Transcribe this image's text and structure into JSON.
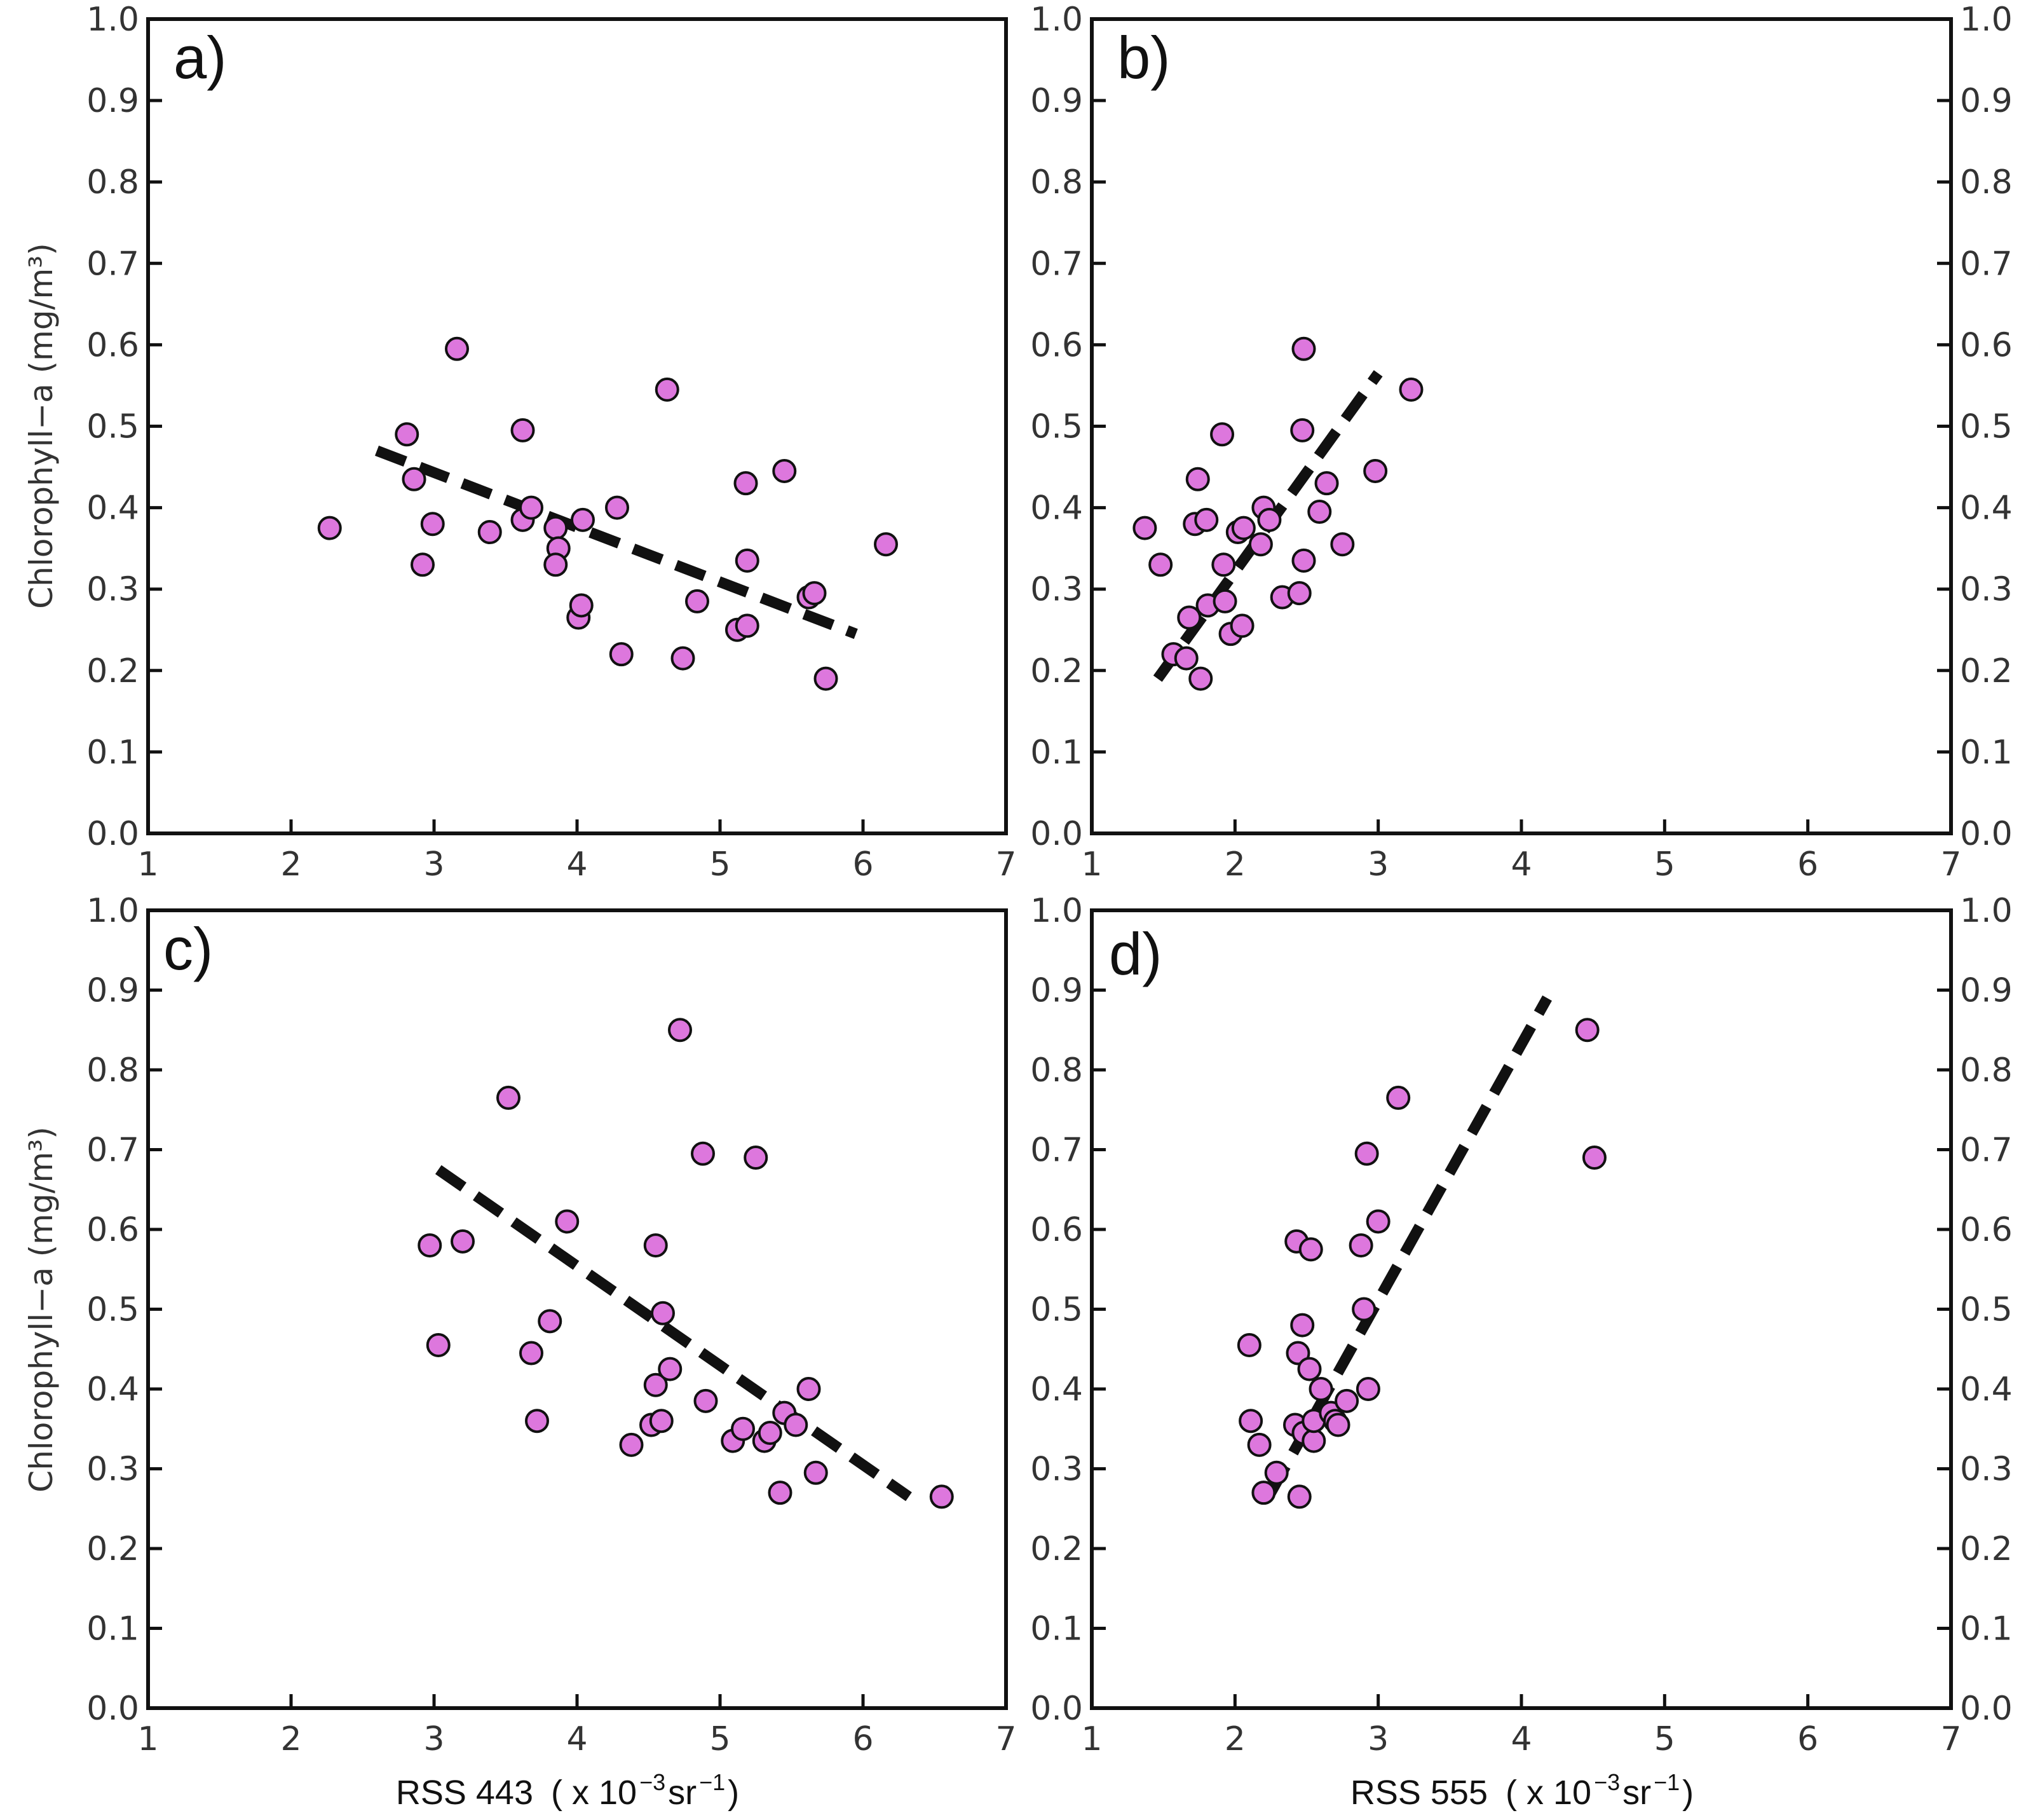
{
  "xlabel_parts": {
    "p443": {
      "name": "RSS 443",
      "unit": "( x 10",
      "exp": "−3",
      "sr": " sr",
      "sr_exp": "−1",
      "close": ")"
    },
    "p555": {
      "name": "RSS 555",
      "unit": "( x 10",
      "exp": "−3",
      "sr": " sr",
      "sr_exp": "−1",
      "close": ")"
    }
  },
  "chart_data": [
    {
      "type": "scatter",
      "panel_label": "a)",
      "title": "",
      "ylabel": "Chlorophyll−a (mg/m³)",
      "xlabel": "",
      "xlim": [
        1,
        7
      ],
      "ylim": [
        0.0,
        1.0
      ],
      "x_ticks": [
        "1",
        "2",
        "3",
        "4",
        "5",
        "6",
        "7"
      ],
      "y_ticks": [
        "0.0",
        "0.1",
        "0.2",
        "0.3",
        "0.4",
        "0.5",
        "0.6",
        "0.7",
        "0.8",
        "0.9",
        "1.0"
      ],
      "left_y_ticks": true,
      "right_y_ticks": false,
      "grid": false,
      "marker_color": "#dd77dd",
      "x": [
        2.27,
        2.81,
        2.86,
        2.92,
        2.99,
        3.16,
        3.39,
        3.62,
        3.62,
        3.68,
        3.85,
        3.87,
        3.85,
        4.01,
        4.03,
        4.04,
        4.28,
        4.31,
        4.63,
        4.74,
        4.84,
        5.12,
        5.18,
        5.19,
        5.19,
        5.45,
        5.62,
        5.66,
        5.74,
        6.16
      ],
      "y": [
        0.375,
        0.49,
        0.435,
        0.33,
        0.38,
        0.595,
        0.37,
        0.495,
        0.385,
        0.4,
        0.375,
        0.35,
        0.33,
        0.265,
        0.28,
        0.385,
        0.4,
        0.22,
        0.545,
        0.215,
        0.285,
        0.25,
        0.43,
        0.335,
        0.255,
        0.445,
        0.29,
        0.295,
        0.19,
        0.355
      ],
      "fit_line": {
        "x": [
          2.6,
          5.95
        ],
        "y": [
          0.47,
          0.245
        ]
      }
    },
    {
      "type": "scatter",
      "panel_label": "b)",
      "title": "",
      "ylabel": "",
      "xlabel": "",
      "xlim": [
        1,
        7
      ],
      "ylim": [
        0.0,
        1.0
      ],
      "x_ticks": [
        "1",
        "2",
        "3",
        "4",
        "5",
        "6",
        "7"
      ],
      "y_ticks": [
        "0.0",
        "0.1",
        "0.2",
        "0.3",
        "0.4",
        "0.5",
        "0.6",
        "0.7",
        "0.8",
        "0.9",
        "1.0"
      ],
      "left_y_ticks": true,
      "right_y_ticks": true,
      "grid": false,
      "marker_color": "#dd77dd",
      "x": [
        1.37,
        1.48,
        1.57,
        1.66,
        1.68,
        1.72,
        1.74,
        1.76,
        1.8,
        1.81,
        1.91,
        1.92,
        1.93,
        1.97,
        2.02,
        2.05,
        2.06,
        2.18,
        2.2,
        2.24,
        2.33,
        2.45,
        2.47,
        2.48,
        2.48,
        2.59,
        2.64,
        2.75,
        2.98,
        3.23
      ],
      "y": [
        0.375,
        0.33,
        0.22,
        0.215,
        0.265,
        0.38,
        0.435,
        0.19,
        0.385,
        0.28,
        0.49,
        0.33,
        0.285,
        0.245,
        0.37,
        0.255,
        0.375,
        0.355,
        0.4,
        0.385,
        0.29,
        0.295,
        0.495,
        0.595,
        0.335,
        0.395,
        0.43,
        0.355,
        0.445,
        0.545
      ],
      "fit_line": {
        "x": [
          1.46,
          3.0
        ],
        "y": [
          0.19,
          0.565
        ]
      }
    },
    {
      "type": "scatter",
      "panel_label": "c)",
      "title": "",
      "ylabel": "Chlorophyll−a (mg/m³)",
      "xlabel": "RSS 443 ( x 10⁻³ sr⁻¹)",
      "xlim": [
        1,
        7
      ],
      "ylim": [
        0.0,
        1.0
      ],
      "x_ticks": [
        "1",
        "2",
        "3",
        "4",
        "5",
        "6",
        "7"
      ],
      "y_ticks": [
        "0.0",
        "0.1",
        "0.2",
        "0.3",
        "0.4",
        "0.5",
        "0.6",
        "0.7",
        "0.8",
        "0.9",
        "1.0"
      ],
      "left_y_ticks": true,
      "right_y_ticks": false,
      "grid": false,
      "marker_color": "#dd77dd",
      "x": [
        2.97,
        3.03,
        3.2,
        3.52,
        3.68,
        3.72,
        3.81,
        3.93,
        4.38,
        4.52,
        4.55,
        4.55,
        4.59,
        4.6,
        4.65,
        4.72,
        4.9,
        4.88,
        5.09,
        5.16,
        5.25,
        5.31,
        5.35,
        5.42,
        5.45,
        5.53,
        5.62,
        5.67,
        6.55
      ],
      "y": [
        0.58,
        0.455,
        0.585,
        0.765,
        0.445,
        0.36,
        0.485,
        0.61,
        0.33,
        0.355,
        0.405,
        0.58,
        0.36,
        0.495,
        0.425,
        0.85,
        0.385,
        0.695,
        0.335,
        0.35,
        0.69,
        0.335,
        0.345,
        0.27,
        0.37,
        0.355,
        0.4,
        0.295,
        0.265
      ],
      "fit_line": {
        "x": [
          3.03,
          6.32
        ],
        "y": [
          0.675,
          0.265
        ]
      }
    },
    {
      "type": "scatter",
      "panel_label": "d)",
      "title": "",
      "ylabel": "",
      "xlabel": "RSS 555 ( x 10⁻³ sr⁻¹)",
      "xlim": [
        1,
        7
      ],
      "ylim": [
        0.0,
        1.0
      ],
      "x_ticks": [
        "1",
        "2",
        "3",
        "4",
        "5",
        "6",
        "7"
      ],
      "y_ticks": [
        "0.0",
        "0.1",
        "0.2",
        "0.3",
        "0.4",
        "0.5",
        "0.6",
        "0.7",
        "0.8",
        "0.9",
        "1.0"
      ],
      "left_y_ticks": true,
      "right_y_ticks": true,
      "grid": false,
      "marker_color": "#dd77dd",
      "x": [
        2.1,
        2.11,
        2.17,
        2.2,
        2.29,
        2.42,
        2.43,
        2.44,
        2.45,
        2.47,
        2.48,
        2.52,
        2.53,
        2.55,
        2.55,
        2.6,
        2.67,
        2.7,
        2.72,
        2.78,
        2.88,
        2.9,
        2.92,
        2.93,
        3.0,
        3.14,
        4.46,
        4.51
      ],
      "y": [
        0.455,
        0.36,
        0.33,
        0.27,
        0.295,
        0.355,
        0.585,
        0.445,
        0.265,
        0.48,
        0.345,
        0.425,
        0.575,
        0.335,
        0.36,
        0.4,
        0.37,
        0.36,
        0.355,
        0.385,
        0.58,
        0.5,
        0.695,
        0.4,
        0.61,
        0.765,
        0.85,
        0.69
      ],
      "fit_line": {
        "x": [
          2.25,
          4.18
        ],
        "y": [
          0.27,
          0.89
        ]
      }
    }
  ]
}
